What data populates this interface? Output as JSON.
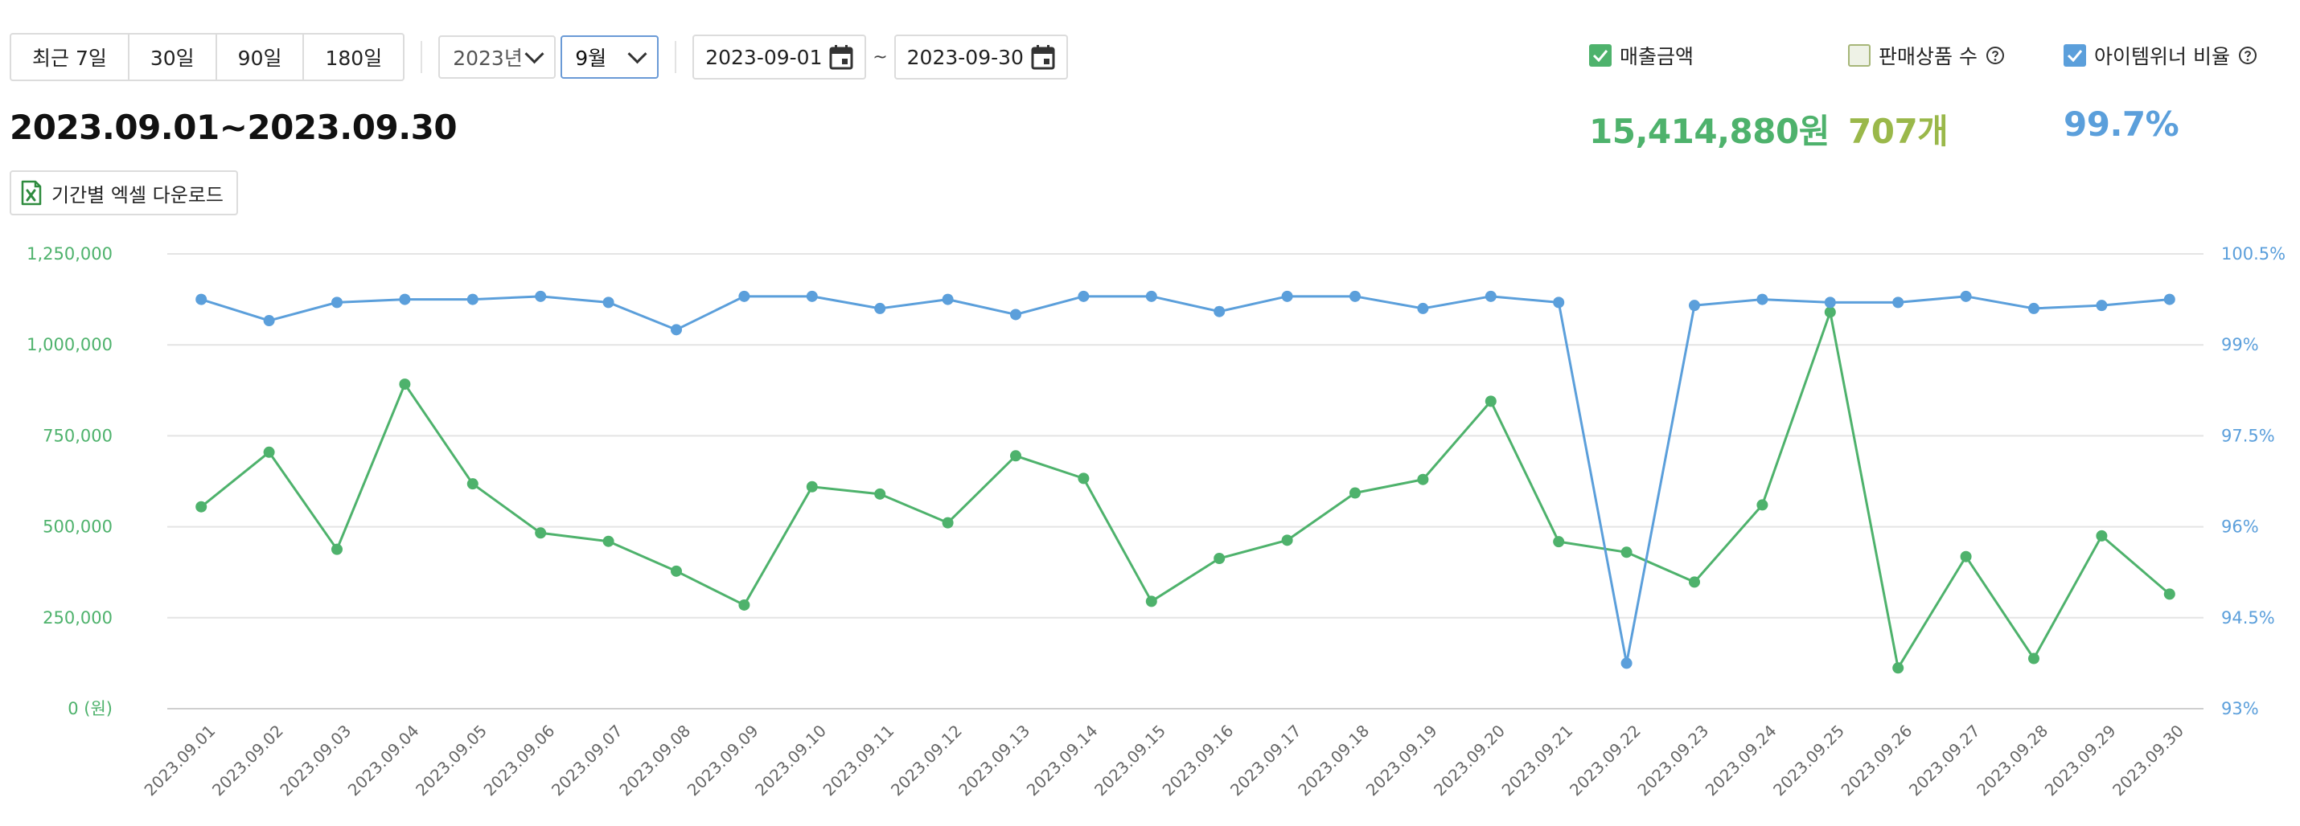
{
  "toolbar": {
    "ranges": [
      "최근 7일",
      "30일",
      "90일",
      "180일"
    ],
    "year_select": "2023년",
    "month_select": "9월",
    "start_date": "2023-09-01",
    "end_date": "2023-09-30",
    "tilde": "~"
  },
  "period_title": "2023.09.01~2023.09.30",
  "excel_button": {
    "label": "기간별 엑셀 다운로드",
    "icon": "excel-icon"
  },
  "metrics": [
    {
      "label": "매출금액",
      "value": "15,414,880원",
      "checked": true,
      "color": "#4eb26c",
      "help": false
    },
    {
      "label": "판매상품 수",
      "value": "707개",
      "checked": false,
      "color": "#9ab84a",
      "help": true
    },
    {
      "label": "아이템위너 비율",
      "value": "99.7%",
      "checked": true,
      "color": "#5b9fdb",
      "help": true
    }
  ],
  "chart_data": {
    "type": "line",
    "categories": [
      "2023.09.01",
      "2023.09.02",
      "2023.09.03",
      "2023.09.04",
      "2023.09.05",
      "2023.09.06",
      "2023.09.07",
      "2023.09.08",
      "2023.09.09",
      "2023.09.10",
      "2023.09.11",
      "2023.09.12",
      "2023.09.13",
      "2023.09.14",
      "2023.09.15",
      "2023.09.16",
      "2023.09.17",
      "2023.09.18",
      "2023.09.19",
      "2023.09.20",
      "2023.09.21",
      "2023.09.22",
      "2023.09.23",
      "2023.09.24",
      "2023.09.25",
      "2023.09.26",
      "2023.09.27",
      "2023.09.28",
      "2023.09.29",
      "2023.09.30"
    ],
    "series": [
      {
        "name": "매출금액",
        "axis": "left",
        "color": "#4eb26c",
        "values": [
          555000,
          705000,
          438000,
          892000,
          618000,
          483000,
          460000,
          378000,
          285000,
          610000,
          590000,
          511000,
          695000,
          633000,
          295000,
          413000,
          463000,
          593000,
          630000,
          845000,
          459000,
          430000,
          348000,
          560000,
          1090000,
          112000,
          418000,
          138000,
          475000,
          315000
        ]
      },
      {
        "name": "아이템위너 비율",
        "axis": "right",
        "color": "#5b9fdb",
        "values": [
          99.75,
          99.4,
          99.7,
          99.75,
          99.75,
          99.8,
          99.7,
          99.25,
          99.8,
          99.8,
          99.6,
          99.75,
          99.5,
          99.8,
          99.8,
          99.55,
          99.8,
          99.8,
          99.6,
          99.8,
          99.7,
          93.75,
          99.65,
          99.75,
          99.7,
          99.7,
          99.8,
          99.6,
          99.65,
          99.75
        ]
      }
    ],
    "y_left": {
      "min": 0,
      "max": 1250000,
      "ticks": [
        "0 (원)",
        "250,000",
        "500,000",
        "750,000",
        "1,000,000",
        "1,250,000"
      ]
    },
    "y_right": {
      "min": 93,
      "max": 100.5,
      "ticks": [
        "93%",
        "94.5%",
        "96%",
        "97.5%",
        "99%",
        "100.5%"
      ]
    },
    "grid": true
  }
}
